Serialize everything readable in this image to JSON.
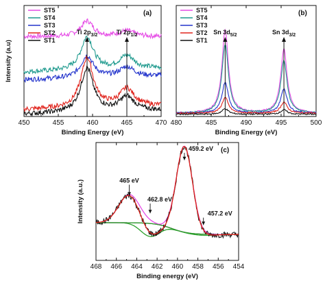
{
  "chart_data": [
    {
      "panel": "(a)",
      "type": "line",
      "xlabel": "Binding Energy (eV)",
      "ylabel": "Intensity (a.u)",
      "xlim": [
        450,
        470
      ],
      "xticks": [
        "450",
        "455",
        "460",
        "465",
        "470"
      ],
      "legend": "top-left",
      "annotations": [
        {
          "main": "Ti 2p",
          "sub": "3/2",
          "x": 459.2
        },
        {
          "main": "Ti 2p",
          "sub": "1/2",
          "x": 465.0
        }
      ],
      "series": [
        {
          "name": "ST5",
          "color": "#e64ce6",
          "base": 0.72,
          "p1": 0.14,
          "p2": 0.05
        },
        {
          "name": "ST4",
          "color": "#1f9a8e",
          "base": 0.4,
          "p1": 0.3,
          "p2": 0.12
        },
        {
          "name": "ST3",
          "color": "#2233cc",
          "base": 0.33,
          "p1": 0.2,
          "p2": 0.09
        },
        {
          "name": "ST2",
          "color": "#e0231c",
          "base": 0.06,
          "p1": 0.45,
          "p2": 0.16
        },
        {
          "name": "ST1",
          "color": "#111111",
          "base": 0.02,
          "p1": 0.4,
          "p2": 0.13
        }
      ]
    },
    {
      "panel": "(b)",
      "type": "line",
      "xlabel": "Binding Energy (eV)",
      "ylabel": "",
      "xlim": [
        480,
        500
      ],
      "xticks": [
        "480",
        "485",
        "490",
        "495",
        "500"
      ],
      "legend": "top-left",
      "annotations": [
        {
          "main": "Sn 3d",
          "sub": "5/2",
          "x": 487.0
        },
        {
          "main": "Sn 3d",
          "sub": "3/2",
          "x": 495.4
        }
      ],
      "series": [
        {
          "name": "ST5",
          "color": "#e64ce6",
          "base": 0.03,
          "p1": 0.75,
          "p2": 0.58
        },
        {
          "name": "ST4",
          "color": "#1f9a8e",
          "base": 0.03,
          "p1": 0.62,
          "p2": 0.47
        },
        {
          "name": "ST3",
          "color": "#2233cc",
          "base": 0.03,
          "p1": 0.28,
          "p2": 0.22
        },
        {
          "name": "ST2",
          "color": "#e0231c",
          "base": 0.03,
          "p1": 0.14,
          "p2": 0.1
        },
        {
          "name": "ST1",
          "color": "#111111",
          "base": 0.02,
          "p1": 0.05,
          "p2": 0.04
        }
      ]
    },
    {
      "panel": "(c)",
      "type": "line",
      "xlabel": "Binding energy (eV)",
      "ylabel": "Intensity (a.u.)",
      "xlim": [
        468.5,
        453.5
      ],
      "xticks": [
        "468",
        "466",
        "464",
        "462",
        "460",
        "458",
        "456",
        "454"
      ],
      "peak_labels": [
        "465 eV",
        "462.8 eV",
        "459.2 eV",
        "457.2 eV"
      ],
      "components": [
        {
          "center": 465.0,
          "height": 0.46,
          "width": 1.1,
          "color": "#e64ce6"
        },
        {
          "center": 462.8,
          "height": 0.11,
          "width": 1.0,
          "color": "#2aa02a"
        },
        {
          "center": 459.2,
          "height": 0.95,
          "width": 0.85,
          "color": "#e64ce6"
        },
        {
          "center": 457.2,
          "height": 0.21,
          "width": 1.2,
          "color": "#2aa02a"
        }
      ],
      "background_color": "#2aa02a",
      "envelope_color": "#e0231c",
      "raw_color": "#111111"
    }
  ]
}
